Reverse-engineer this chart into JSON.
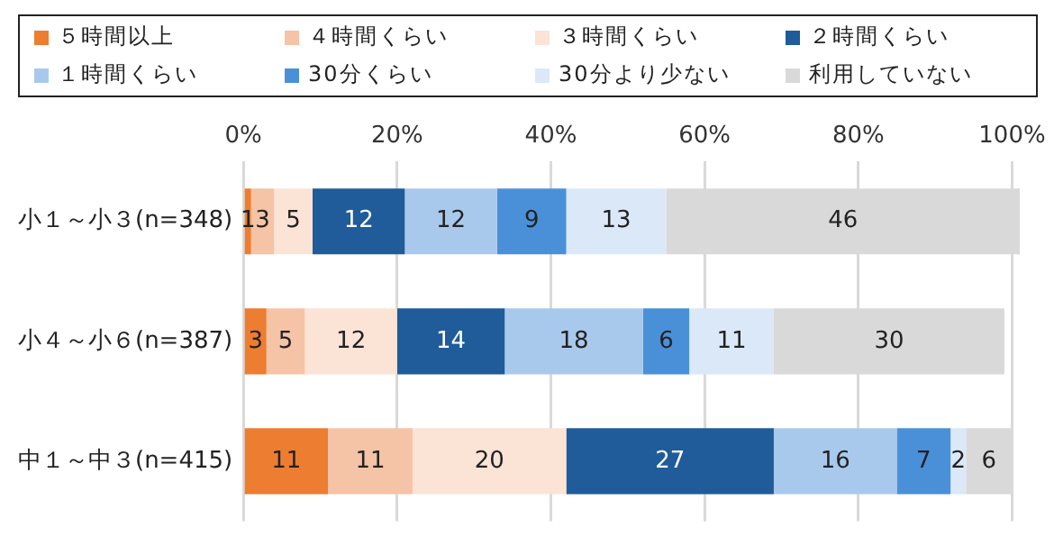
{
  "chart_data": {
    "type": "bar",
    "orientation": "horizontal",
    "stacked": true,
    "data_labels": true,
    "grid": "x",
    "legend": "top",
    "categories": [
      "小１～小３(n=348)",
      "小４～小６(n=387)",
      "中１～中３(n=415)"
    ],
    "xlim": [
      0,
      101
    ],
    "xticks": [
      {
        "value": 0,
        "label": "0%"
      },
      {
        "value": 20,
        "label": "20%"
      },
      {
        "value": 40,
        "label": "40%"
      },
      {
        "value": 60,
        "label": "60%"
      },
      {
        "value": 80,
        "label": "80%"
      },
      {
        "value": 100,
        "label": "100%"
      }
    ],
    "series": [
      {
        "name": "５時間以上",
        "color": "#ed7d31",
        "values": [
          1,
          3,
          11
        ]
      },
      {
        "name": "４時間くらい",
        "color": "#f5c3a5",
        "values": [
          3,
          5,
          11
        ]
      },
      {
        "name": "３時間くらい",
        "color": "#fbe3d6",
        "values": [
          5,
          12,
          20
        ]
      },
      {
        "name": "２時間くらい",
        "color": "#1f5c99",
        "values": [
          12,
          14,
          27
        ]
      },
      {
        "name": "１時間くらい",
        "color": "#a9c9ec",
        "values": [
          12,
          18,
          16
        ]
      },
      {
        "name": "30分くらい",
        "color": "#4a90d9",
        "values": [
          9,
          6,
          7
        ]
      },
      {
        "name": "30分より少ない",
        "color": "#dae8f7",
        "values": [
          13,
          11,
          2
        ]
      },
      {
        "name": "利用していない",
        "color": "#d9d9d9",
        "values": [
          46,
          30,
          6
        ]
      }
    ]
  }
}
